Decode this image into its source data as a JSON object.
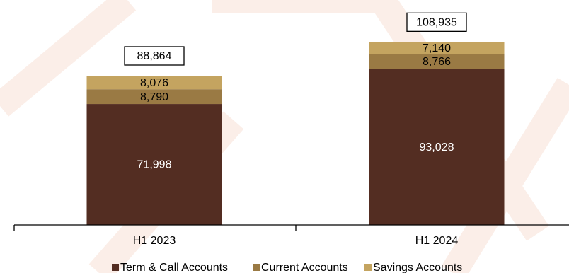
{
  "chart_data": {
    "type": "bar",
    "stacked": true,
    "categories": [
      "H1 2023",
      "H1 2024"
    ],
    "series": [
      {
        "name": "Term & Call Accounts",
        "color": "#532d22",
        "label_color": "#ffffff",
        "values": [
          71998,
          93028
        ],
        "labels": [
          "71,998",
          "93,028"
        ]
      },
      {
        "name": "Current Accounts",
        "color": "#9a7a44",
        "label_color": "#000000",
        "values": [
          8790,
          8766
        ],
        "labels": [
          "8,790",
          "8,766"
        ]
      },
      {
        "name": "Savings Accounts",
        "color": "#c4a460",
        "label_color": "#000000",
        "values": [
          8076,
          7140
        ],
        "labels": [
          "8,076",
          "7,140"
        ]
      }
    ],
    "totals": [
      "88,864",
      "108,935"
    ],
    "legend_position": "bottom",
    "grid": false,
    "ylim": [
      0,
      115000
    ]
  }
}
